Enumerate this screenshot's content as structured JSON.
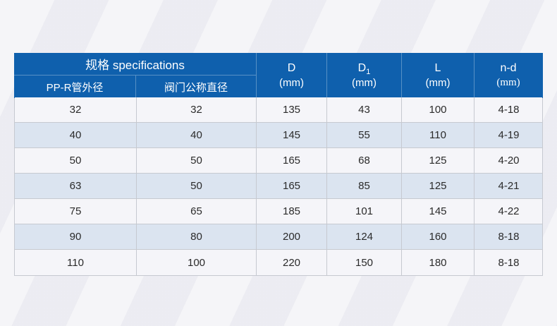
{
  "table": {
    "header": {
      "spec_group": "规格 specifications",
      "sub_col_pipe": "PP-R管外径",
      "sub_col_valve": "阀门公称直径",
      "col_d": {
        "symbol": "D",
        "unit": "(mm)"
      },
      "col_d1": {
        "symbol": "D",
        "subscript": "1",
        "unit": "(mm)"
      },
      "col_l": {
        "symbol": "L",
        "unit": "(mm)"
      },
      "col_nd": {
        "symbol": "n-d",
        "unit": "(mm)"
      }
    },
    "rows": [
      [
        "32",
        "32",
        "135",
        "43",
        "100",
        "4-18"
      ],
      [
        "40",
        "40",
        "145",
        "55",
        "110",
        "4-19"
      ],
      [
        "50",
        "50",
        "165",
        "68",
        "125",
        "4-20"
      ],
      [
        "63",
        "50",
        "165",
        "85",
        "125",
        "4-21"
      ],
      [
        "75",
        "65",
        "185",
        "101",
        "145",
        "4-22"
      ],
      [
        "90",
        "80",
        "200",
        "124",
        "160",
        "8-18"
      ],
      [
        "110",
        "100",
        "220",
        "150",
        "180",
        "8-18"
      ]
    ]
  },
  "colors": {
    "header_blue": "#0f60ad",
    "row_alt_blue": "#dbe4f0",
    "row_light": "#f5f5f9",
    "grid_line": "#c6c9d0",
    "page_background": "#f0f0f5",
    "header_text": "#ffffff",
    "cell_text": "#2b2b2b"
  }
}
